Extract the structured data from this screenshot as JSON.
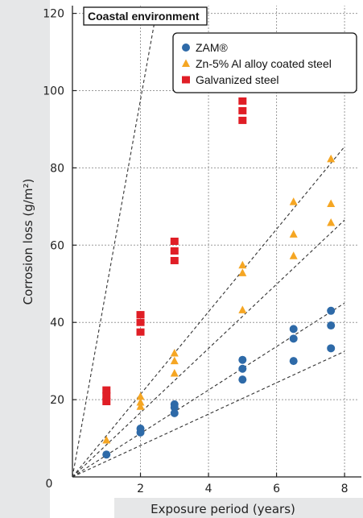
{
  "chart_data": {
    "type": "scatter",
    "title": "Coastal environment",
    "xlabel": "Exposure period (years)",
    "ylabel": "Corrosion loss (g/m²)",
    "xlim": [
      0,
      8.4
    ],
    "ylim": [
      0,
      122
    ],
    "xticks": [
      0,
      2,
      4,
      6,
      8
    ],
    "yticks": [
      20,
      40,
      60,
      80,
      100,
      120
    ],
    "grid": true,
    "legend_position": "top-right",
    "series": [
      {
        "name": "ZAM®",
        "marker": "circle",
        "color": "#2e6aa8",
        "points": [
          [
            1,
            5.8
          ],
          [
            2,
            11.5
          ],
          [
            2,
            12.5
          ],
          [
            3,
            16.5
          ],
          [
            3,
            18.0
          ],
          [
            3,
            18.8
          ],
          [
            5,
            25.2
          ],
          [
            5,
            28.0
          ],
          [
            5,
            30.3
          ],
          [
            6.5,
            30.0
          ],
          [
            6.5,
            35.8
          ],
          [
            6.5,
            38.3
          ],
          [
            7.6,
            33.3
          ],
          [
            7.6,
            39.2
          ],
          [
            7.6,
            43.0
          ]
        ]
      },
      {
        "name": "Zn-5% Al alloy coated steel",
        "marker": "triangle",
        "color": "#f5a623",
        "points": [
          [
            1,
            9.5
          ],
          [
            2,
            18.2
          ],
          [
            2,
            19.3
          ],
          [
            2,
            20.8
          ],
          [
            3,
            26.8
          ],
          [
            3,
            30.0
          ],
          [
            3,
            32.0
          ],
          [
            5,
            43.2
          ],
          [
            5,
            52.8
          ],
          [
            5,
            54.8
          ],
          [
            6.5,
            57.2
          ],
          [
            6.5,
            62.8
          ],
          [
            6.5,
            71.2
          ],
          [
            7.6,
            65.8
          ],
          [
            7.6,
            70.7
          ],
          [
            7.6,
            82.3
          ]
        ]
      },
      {
        "name": "Galvanized steel",
        "marker": "square",
        "color": "#e01e26",
        "points": [
          [
            1,
            19.5
          ],
          [
            1,
            21.0
          ],
          [
            1,
            22.5
          ],
          [
            2,
            37.5
          ],
          [
            2,
            40.0
          ],
          [
            2,
            42.0
          ],
          [
            3,
            56.0
          ],
          [
            3,
            58.5
          ],
          [
            3,
            61.0
          ],
          [
            5,
            92.3
          ],
          [
            5,
            94.8
          ],
          [
            5,
            97.3
          ]
        ]
      }
    ],
    "trend_lines": [
      {
        "from": [
          0,
          0
        ],
        "to": [
          2.5,
          122
        ]
      },
      {
        "from": [
          0,
          0
        ],
        "to": [
          8.0,
          85.5
        ]
      },
      {
        "from": [
          0,
          0
        ],
        "to": [
          8.0,
          66.5
        ]
      },
      {
        "from": [
          0,
          0
        ],
        "to": [
          8.0,
          45.0
        ]
      },
      {
        "from": [
          0,
          0
        ],
        "to": [
          8.0,
          32.5
        ]
      }
    ]
  },
  "style": {
    "axis_band_color": "#e6e7e8",
    "grid_color": "#9a9a9a",
    "trend_color": "#333333"
  }
}
